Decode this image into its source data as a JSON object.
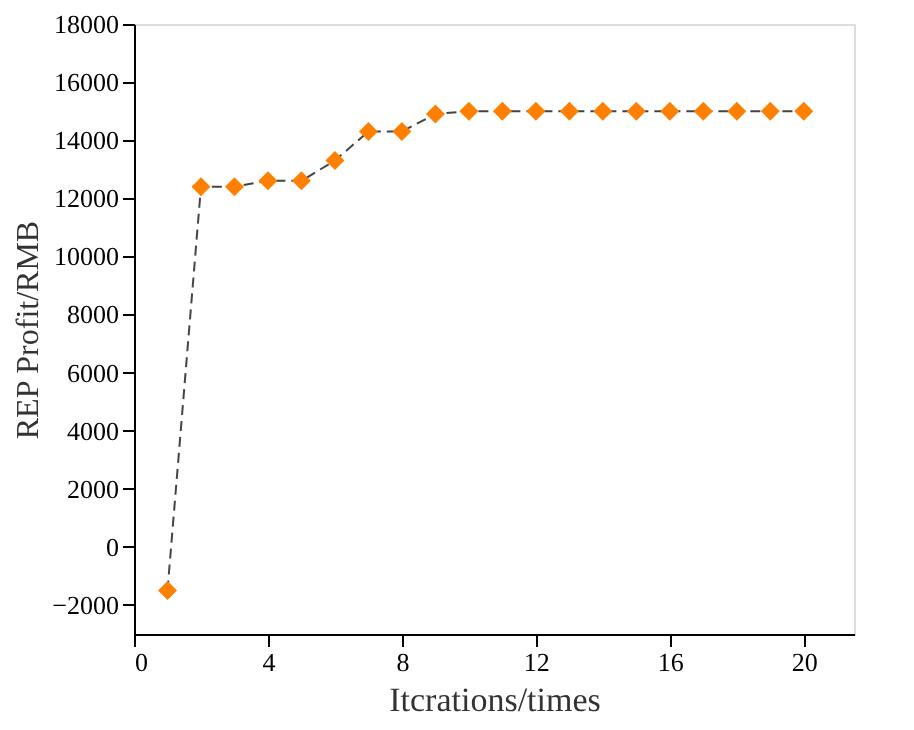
{
  "chart_data": {
    "type": "line",
    "xlabel": "Itcrations/times",
    "ylabel": "REP Profit/RMB",
    "x": [
      1,
      2,
      3,
      4,
      5,
      6,
      7,
      8,
      9,
      10,
      11,
      12,
      13,
      14,
      15,
      16,
      17,
      18,
      19,
      20
    ],
    "series": [
      {
        "color": "#ff8000",
        "values": [
          -1500,
          12400,
          12400,
          12600,
          12600,
          13300,
          14300,
          14300,
          14900,
          15000,
          15000,
          15000,
          15000,
          15000,
          15000,
          15000,
          15000,
          15000,
          15000,
          15000
        ]
      }
    ],
    "xlim": [
      0,
      21.5
    ],
    "xticks": [
      0,
      4,
      8,
      12,
      16,
      20
    ],
    "ylim": [
      -3000,
      18000
    ],
    "yticks": [
      -2000,
      0,
      2000,
      4000,
      6000,
      8000,
      10000,
      12000,
      14000,
      16000,
      18000
    ],
    "marker": "diamond",
    "line_style": "dashed",
    "grid": false
  }
}
